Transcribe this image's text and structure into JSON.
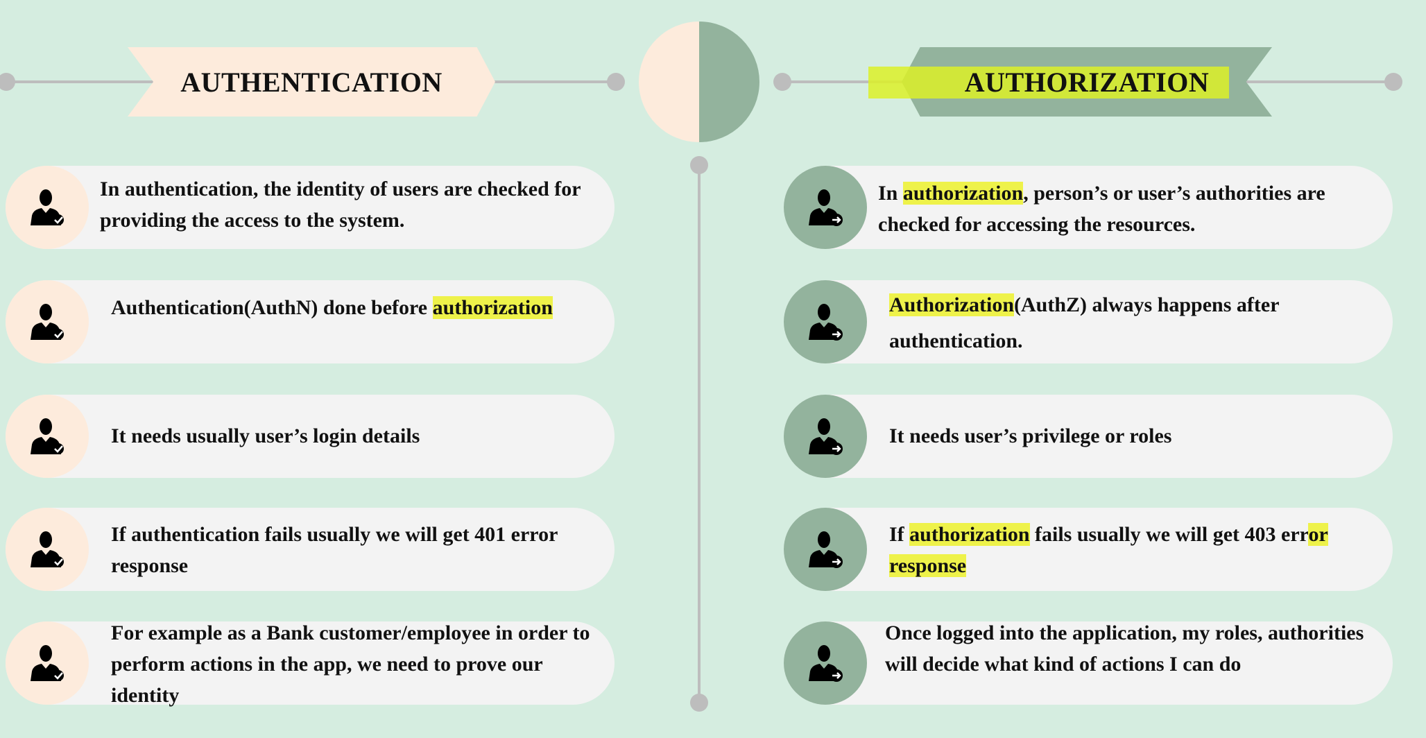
{
  "left": {
    "title": "AUTHENTICATION",
    "rows": [
      {
        "text": "In authentication, the identity of users are checked for providing the access to the system."
      },
      {
        "pre": "Authentication(AuthN) done before ",
        "highlight": "authorization",
        "post": ""
      },
      {
        "text": "It needs usually user’s login details"
      },
      {
        "text": "If authentication fails usually we will get 401 error response"
      },
      {
        "text": "For example as a Bank customer/employee in order to perform actions in the app, we need to prove our identity"
      }
    ]
  },
  "right": {
    "title": "AUTHORIZATION",
    "rows": [
      {
        "pre": "In ",
        "highlight": "authorization",
        "post": ", person’s or user’s authorities are checked for accessing the resources."
      },
      {
        "pre": "",
        "highlight": "Authorization",
        "post": "(AuthZ) always happens after authentication."
      },
      {
        "text": "It needs user’s privilege or roles"
      },
      {
        "pre": "If ",
        "highlight": "authorization",
        "mid": " fails usually we will get 403 err",
        "highlight2": "or response",
        "post": ""
      },
      {
        "text": "Once logged into the application, my roles, authorities will decide what kind of actions I can do"
      }
    ]
  },
  "colors": {
    "background": "#d5ede0",
    "left_accent": "#fdebdc",
    "right_accent": "#93b39d",
    "highlight": "#eef24a",
    "line": "#bdbdbd",
    "pill": "#f3f3f3"
  },
  "icons": {
    "left": "user-check-icon",
    "right": "user-arrow-icon"
  }
}
